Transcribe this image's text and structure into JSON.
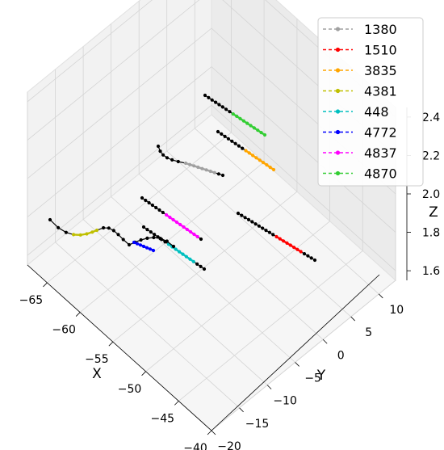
{
  "chart_data": {
    "type": "line",
    "projection": "3d",
    "grid": true,
    "legend_position": "top-right",
    "xlabel": "X",
    "ylabel": "Y",
    "zlabel": "Z",
    "xlim": [
      -68,
      -40
    ],
    "ylim": [
      -20,
      13
    ],
    "zlim": [
      1.55,
      2.45
    ],
    "x_ticks": [
      "−65",
      "−60",
      "−55",
      "−50",
      "−45",
      "−40"
    ],
    "y_ticks": [
      "−20",
      "−15",
      "−10",
      "−5",
      "0",
      "5",
      "10"
    ],
    "z_ticks": [
      "1.6",
      "1.8",
      "2.0",
      "2.2",
      "2.4"
    ],
    "context_track_color": "#000000",
    "series": [
      {
        "name": "1380",
        "color": "#a0a0a0"
      },
      {
        "name": "1510",
        "color": "#ff0000"
      },
      {
        "name": "3835",
        "color": "#ffa500"
      },
      {
        "name": "4381",
        "color": "#bfbf00"
      },
      {
        "name": "448",
        "color": "#00bfbf"
      },
      {
        "name": "4772",
        "color": "#0000ff"
      },
      {
        "name": "4837",
        "color": "#ff00ff"
      },
      {
        "name": "4870",
        "color": "#32cd32"
      }
    ]
  }
}
